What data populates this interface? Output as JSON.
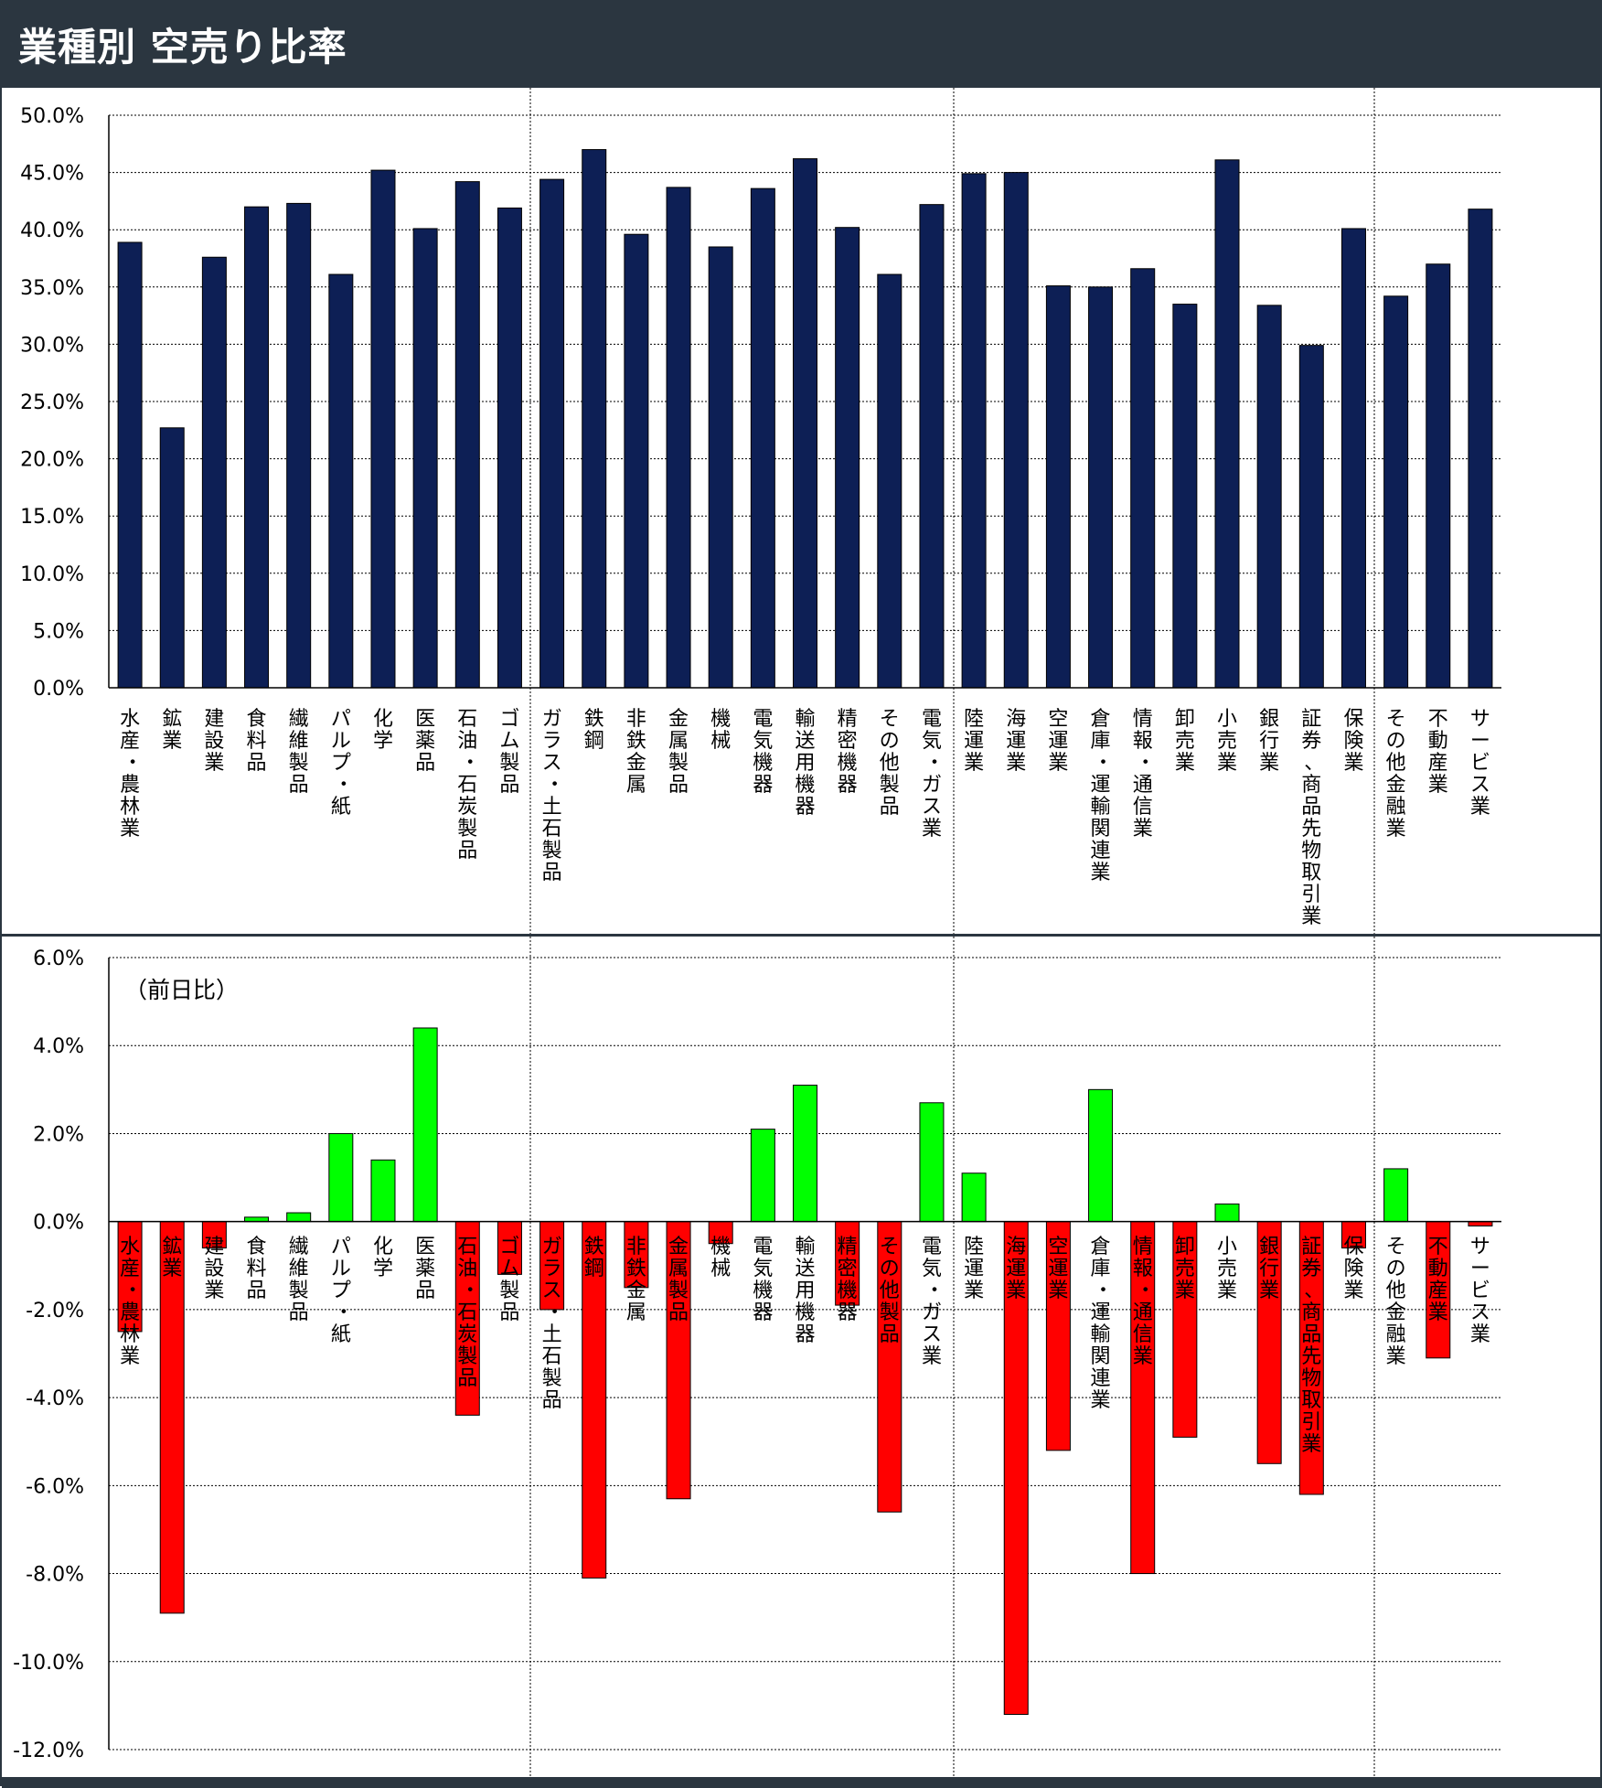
{
  "header": {
    "title": "業種別 空売り比率"
  },
  "colors": {
    "header_bg": "#2b3640",
    "bar_ratio": "#0d1f55",
    "bar_positive": "#00ff00",
    "bar_negative": "#ff0000"
  },
  "chart_data": [
    {
      "type": "bar",
      "categories": [
        "水産・農林業",
        "鉱業",
        "建設業",
        "食料品",
        "繊維製品",
        "パルプ・紙",
        "化学",
        "医薬品",
        "石油・石炭製品",
        "ゴム製品",
        "ガラス・土石製品",
        "鉄鋼",
        "非鉄金属",
        "金属製品",
        "機械",
        "電気機器",
        "輸送用機器",
        "精密機器",
        "その他製品",
        "電気・ガス業",
        "陸運業",
        "海運業",
        "空運業",
        "倉庫・運輸関連業",
        "情報・通信業",
        "卸売業",
        "小売業",
        "銀行業",
        "証券、商品先物取引業",
        "保険業",
        "その他金融業",
        "不動産業",
        "サービス業"
      ],
      "values": [
        38.9,
        22.7,
        37.6,
        42.0,
        42.3,
        36.1,
        45.2,
        40.1,
        44.2,
        41.9,
        44.4,
        47.0,
        39.6,
        43.7,
        38.5,
        43.6,
        46.2,
        40.2,
        36.1,
        42.2,
        44.9,
        45.0,
        35.1,
        35.0,
        36.6,
        33.5,
        46.1,
        33.4,
        29.9,
        40.1,
        34.2,
        37.0,
        41.8
      ],
      "title": "",
      "xlabel": "",
      "ylabel": "",
      "ylim": [
        0,
        50
      ],
      "yticks": [
        "0.0%",
        "5.0%",
        "10.0%",
        "15.0%",
        "20.0%",
        "25.0%",
        "30.0%",
        "35.0%",
        "40.0%",
        "45.0%",
        "50.0%"
      ],
      "grid": true,
      "unit": "%"
    },
    {
      "type": "bar",
      "annotation": "（前日比）",
      "categories": [
        "水産・農林業",
        "鉱業",
        "建設業",
        "食料品",
        "繊維製品",
        "パルプ・紙",
        "化学",
        "医薬品",
        "石油・石炭製品",
        "ゴム製品",
        "ガラス・土石製品",
        "鉄鋼",
        "非鉄金属",
        "金属製品",
        "機械",
        "電気機器",
        "輸送用機器",
        "精密機器",
        "その他製品",
        "電気・ガス業",
        "陸運業",
        "海運業",
        "空運業",
        "倉庫・運輸関連業",
        "情報・通信業",
        "卸売業",
        "小売業",
        "銀行業",
        "証券、商品先物取引業",
        "保険業",
        "その他金融業",
        "不動産業",
        "サービス業"
      ],
      "values": [
        -2.5,
        -8.9,
        -0.6,
        0.1,
        0.2,
        2.0,
        1.4,
        4.4,
        -4.4,
        -1.2,
        -2.0,
        -8.1,
        -1.5,
        -6.3,
        -0.5,
        2.1,
        3.1,
        -1.9,
        -6.6,
        2.7,
        1.1,
        -11.2,
        -5.2,
        3.0,
        -8.0,
        -4.9,
        0.4,
        -5.5,
        -6.2,
        -0.6,
        1.2,
        -3.1,
        -0.1
      ],
      "title": "",
      "xlabel": "",
      "ylabel": "",
      "ylim": [
        -12,
        6
      ],
      "yticks": [
        "-12.0%",
        "-10.0%",
        "-8.0%",
        "-6.0%",
        "-4.0%",
        "-2.0%",
        "0.0%",
        "2.0%",
        "4.0%",
        "6.0%"
      ],
      "grid": true,
      "unit": "%"
    }
  ]
}
